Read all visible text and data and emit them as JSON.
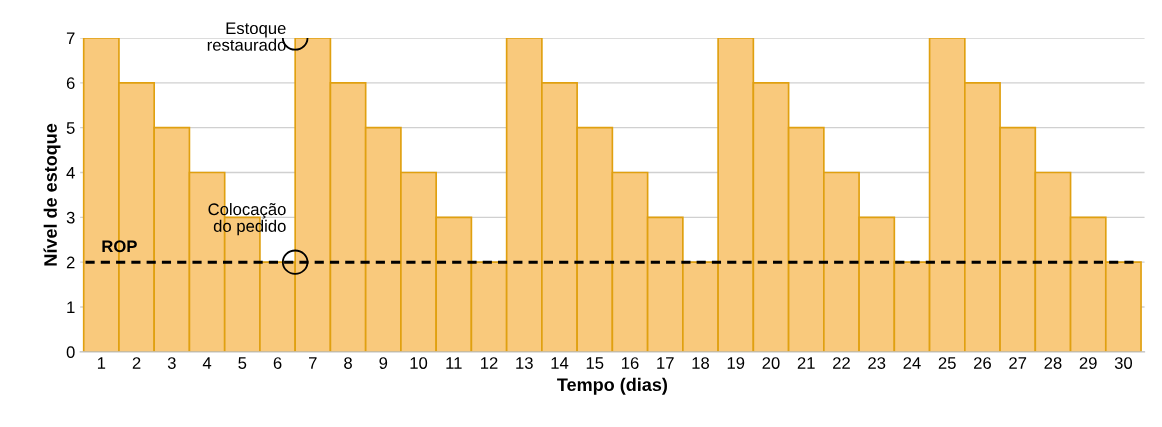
{
  "chart_data": {
    "type": "bar",
    "xlabel": "Tempo (dias)",
    "ylabel": "Nível de estoque",
    "categories": [
      "1",
      "2",
      "3",
      "4",
      "5",
      "6",
      "7",
      "8",
      "9",
      "10",
      "11",
      "12",
      "13",
      "14",
      "15",
      "16",
      "17",
      "18",
      "19",
      "20",
      "21",
      "22",
      "23",
      "24",
      "25",
      "26",
      "27",
      "28",
      "29",
      "30"
    ],
    "values": [
      7,
      6,
      5,
      4,
      3,
      2,
      7,
      6,
      5,
      4,
      3,
      2,
      7,
      6,
      5,
      4,
      3,
      2,
      7,
      6,
      5,
      4,
      3,
      2,
      7,
      6,
      5,
      4,
      3,
      2
    ],
    "color": "#f9c97c",
    "ylim": [
      0,
      7
    ],
    "yticks": [
      0,
      1,
      2,
      3,
      4,
      5,
      6,
      7
    ],
    "grid": "y",
    "legend": false,
    "ref_lines": [
      {
        "axis": "y",
        "value": 2,
        "label": "ROP",
        "color": "#000000",
        "line_style": "dashed"
      }
    ],
    "annotations": [
      {
        "text": "Estoque\nrestaurado",
        "x": "7",
        "y": 7
      },
      {
        "text": "Colocação\ndo pedido",
        "x": "7",
        "y": 2
      }
    ]
  }
}
